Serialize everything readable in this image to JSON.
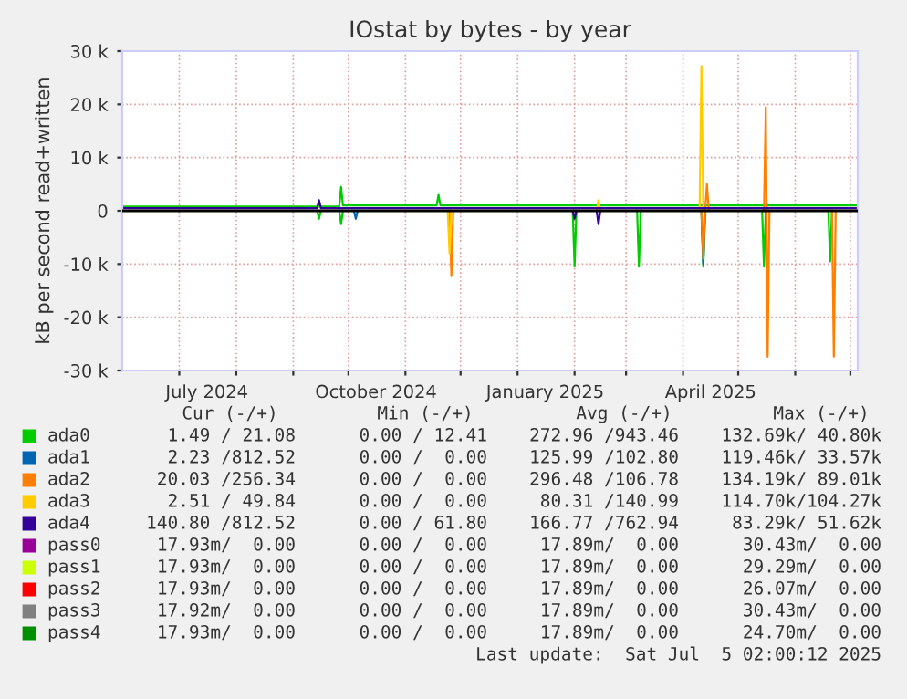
{
  "chart_data": {
    "type": "line",
    "title": "IOstat by bytes - by year",
    "ylabel": "kB per second read+written",
    "xlim": [
      "2024-05-31",
      "2025-07-05"
    ],
    "ylim": [
      -30000,
      30000
    ],
    "yticks": [
      {
        "value": -30000,
        "label": "-30 k"
      },
      {
        "value": -20000,
        "label": "-20 k"
      },
      {
        "value": -10000,
        "label": "-10 k"
      },
      0,
      {
        "value": 10000,
        "label": "10 k"
      },
      {
        "value": 20000,
        "label": "20 k"
      },
      {
        "value": 30000,
        "label": "30 k"
      }
    ],
    "xticks": [
      {
        "value": "2024-07-01",
        "label": null
      },
      {
        "value": "2024-07-16",
        "label": "July 2024"
      },
      {
        "value": "2024-08-01",
        "label": null
      },
      {
        "value": "2024-09-01",
        "label": null
      },
      {
        "value": "2024-10-01",
        "label": null
      },
      {
        "value": "2024-10-16",
        "label": "October 2024"
      },
      {
        "value": "2024-11-01",
        "label": null
      },
      {
        "value": "2024-12-01",
        "label": null
      },
      {
        "value": "2025-01-01",
        "label": null
      },
      {
        "value": "2025-01-16",
        "label": "January 2025"
      },
      {
        "value": "2025-02-01",
        "label": null
      },
      {
        "value": "2025-03-01",
        "label": null
      },
      {
        "value": "2025-04-01",
        "label": null
      },
      {
        "value": "2025-04-16",
        "label": "April 2025"
      },
      {
        "value": "2025-05-01",
        "label": null
      },
      {
        "value": "2025-06-01",
        "label": null
      },
      {
        "value": "2025-07-01",
        "label": null
      }
    ],
    "grid": true,
    "legend": "bottom",
    "ref_lines": [
      {
        "axis": "y",
        "value": 0,
        "label": null,
        "color": "#000000"
      }
    ],
    "series": [
      {
        "color": "#00cc00",
        "x": [
          "2024-09-14",
          "2024-09-15",
          "2024-09-16",
          "2024-09-20",
          "2024-09-26",
          "2024-09-27",
          "2024-09-28",
          "2025-01-01",
          "2025-01-31",
          "2025-02-01",
          "2025-02-02",
          "2025-02-20",
          "2025-03-07",
          "2025-03-08",
          "2025-03-09",
          "2025-03-25",
          "2025-04-11",
          "2025-04-12",
          "2025-04-13",
          "2025-05-01",
          "2025-05-14",
          "2025-05-15",
          "2025-05-16",
          "2025-06-01",
          "2025-06-19",
          "2025-06-20",
          "2025-06-21"
        ],
        "values": [
          0,
          -1500,
          0,
          null,
          0,
          -2500,
          0,
          null,
          0,
          -10500,
          0,
          null,
          0,
          -10500,
          0,
          null,
          0,
          -10500,
          0,
          null,
          0,
          -10500,
          0,
          null,
          0,
          -9500,
          0
        ]
      },
      {
        "color": "#330099",
        "x": [
          "2025-01-31",
          "2025-02-01",
          "2025-02-02",
          "2025-02-08",
          "2025-02-13",
          "2025-02-14",
          "2025-02-15"
        ],
        "values": [
          0,
          -1500,
          0,
          null,
          0,
          -2500,
          0
        ]
      },
      {
        "name": "ada0",
        "color": "#00cc00",
        "x": [
          "2024-05-31",
          "2024-09-26",
          "2024-09-27",
          "2024-09-28",
          "2024-11-18",
          "2024-11-19",
          "2024-11-20",
          "2025-07-05"
        ],
        "values": [
          800,
          800,
          4500,
          1000,
          1000,
          3000,
          1000,
          1000
        ]
      },
      {
        "name": "ada1",
        "color": "#0066b3",
        "x": [
          "2024-10-04",
          "2024-10-05",
          "2024-10-06",
          "2025-01-01",
          "2025-04-11",
          "2025-04-12",
          "2025-04-13"
        ],
        "values": [
          0,
          -1500,
          0,
          null,
          0,
          -10000,
          0
        ]
      },
      {
        "name": "ada2",
        "color": "#ff8000",
        "x": [
          "2024-11-25",
          "2024-11-26",
          "2024-11-27",
          "2025-01-01",
          "2025-04-11",
          "2025-04-12",
          "2025-04-13",
          "2025-04-14",
          "2025-04-15",
          "2025-05-01",
          "2025-05-15",
          "2025-05-16",
          "2025-05-17",
          "2025-05-18",
          "2025-06-01",
          "2025-06-21",
          "2025-06-22",
          "2025-06-23"
        ],
        "values": [
          0,
          -12300,
          0,
          null,
          0,
          -9000,
          0,
          5000,
          0,
          null,
          0,
          19500,
          -27400,
          0,
          null,
          0,
          -27400,
          0
        ]
      },
      {
        "name": "ada3",
        "color": "#ffcc00",
        "x": [
          "2024-11-24",
          "2024-11-25",
          "2024-11-26",
          "2025-01-01",
          "2025-02-13",
          "2025-02-14",
          "2025-02-15",
          "2025-03-01",
          "2025-04-10",
          "2025-04-11",
          "2025-04-12"
        ],
        "values": [
          0,
          -8000,
          0,
          null,
          0,
          2000,
          0,
          null,
          0,
          27200,
          0
        ]
      },
      {
        "name": "ada4",
        "color": "#330099",
        "x": [
          "2024-05-31",
          "2024-09-14",
          "2024-09-15",
          "2024-09-16",
          "2025-07-05"
        ],
        "values": [
          500,
          500,
          2000,
          500,
          500
        ]
      },
      {
        "name": "pass0",
        "color": "#990099"
      },
      {
        "name": "pass1",
        "color": "#ccff00"
      },
      {
        "name": "pass2",
        "color": "#ff0000"
      },
      {
        "name": "pass3",
        "color": "#808080"
      },
      {
        "name": "pass4",
        "color": "#008f00"
      }
    ],
    "annotations": [
      "Cur (-/+)",
      "Min (-/+)",
      "Avg (-/+)",
      "Max (-/+)",
      "1.49 / 21.08",
      "0.00 / 12.41",
      "272.96 /943.46",
      "132.69k/ 40.80k",
      "2.23 /812.52",
      "0.00 /  0.00",
      "125.99 /102.80",
      "119.46k/ 33.57k",
      "20.03 /256.34",
      "0.00 /  0.00",
      "296.48 /106.78",
      "134.19k/ 89.01k",
      "2.51 / 49.84",
      "0.00 /  0.00",
      "80.31 /140.99",
      "114.70k/104.27k",
      "140.80 /812.52",
      "0.00 / 61.80",
      "166.77 /762.94",
      "83.29k/ 51.62k",
      "17.93m/  0.00",
      "0.00 /  0.00",
      "17.89m/  0.00",
      "30.43m/  0.00",
      "17.93m/  0.00",
      "0.00 /  0.00",
      "17.89m/  0.00",
      "29.29m/  0.00",
      "17.93m/  0.00",
      "0.00 /  0.00",
      "17.89m/  0.00",
      "26.07m/  0.00",
      "17.92m/  0.00",
      "0.00 /  0.00",
      "17.89m/  0.00",
      "30.43m/  0.00",
      "17.93m/  0.00",
      "0.00 /  0.00",
      "17.89m/  0.00",
      "24.70m/  0.00",
      "Last update:  Sat Jul  5 02:00:12 2025"
    ]
  }
}
